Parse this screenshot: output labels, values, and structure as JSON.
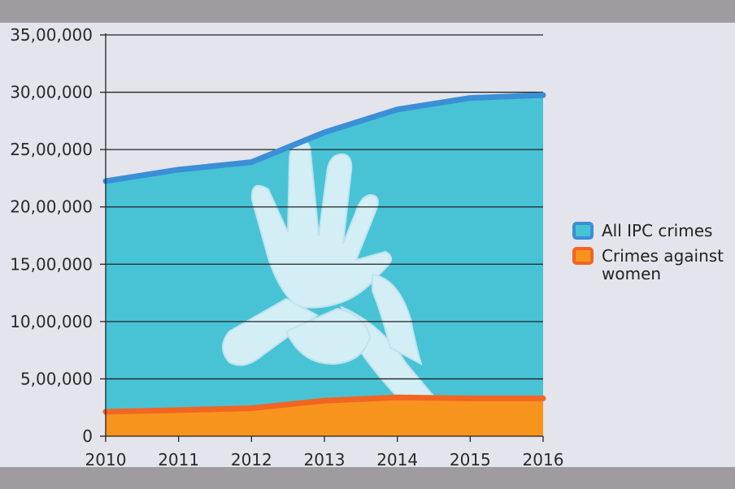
{
  "chart_data": {
    "type": "area",
    "x": [
      2010,
      2011,
      2012,
      2013,
      2014,
      2015,
      2016
    ],
    "series": [
      {
        "name": "All IPC crimes",
        "values": [
          2225000,
          2325000,
          2390000,
          2650000,
          2850000,
          2950000,
          2975000
        ],
        "fill": "#48c3d6",
        "line": "#3a8fd6"
      },
      {
        "name": "Crimes against women",
        "values": [
          213000,
          228000,
          244000,
          310000,
          338000,
          330000,
          330000
        ],
        "fill": "#f7941d",
        "line": "#f26522"
      }
    ],
    "y_ticks": [
      "0",
      "5,00,000",
      "10,00,000",
      "15,00,000",
      "20,00,000",
      "25,00,000",
      "30,00,000",
      "35,00,000"
    ],
    "x_ticks": [
      "2010",
      "2011",
      "2012",
      "2013",
      "2014",
      "2015",
      "2016"
    ],
    "ylim": [
      0,
      3500000
    ],
    "grid": true,
    "legend_position": "right",
    "legend": [
      {
        "label_lines": [
          "All IPC crimes"
        ],
        "color": "#48c3d6",
        "border": "#3a8fd6"
      },
      {
        "label_lines": [
          "Crimes against",
          "women"
        ],
        "color": "#f7941d",
        "border": "#f26522"
      }
    ],
    "illustration": "raised-hand-icon"
  }
}
